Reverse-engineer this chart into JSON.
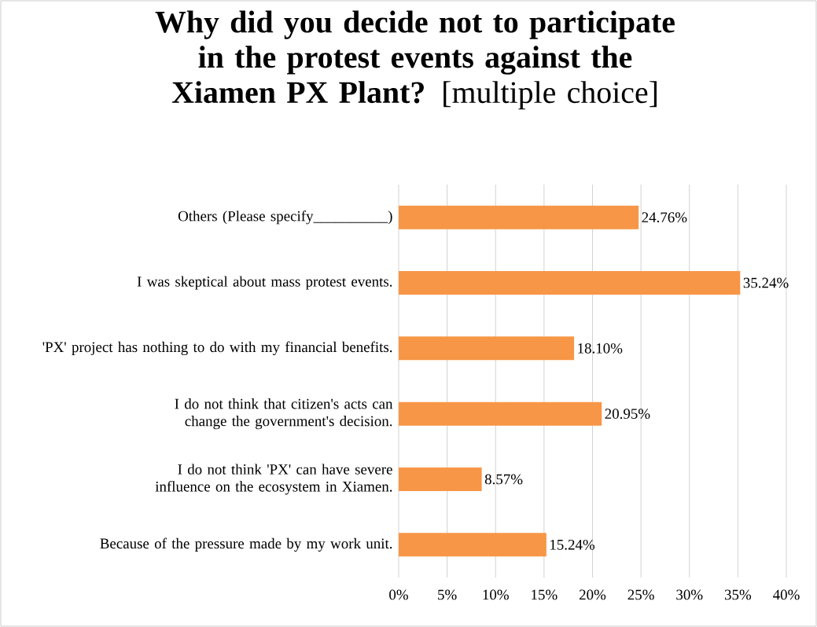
{
  "chart_data": {
    "type": "bar",
    "orientation": "horizontal",
    "title": "**Why did you decide not to participate in the protest events against the Xiamen PX Plant?** [multiple choice]",
    "categories": [
      "Others (Please specify__________)",
      "I was skeptical about mass protest events.",
      "'PX' project has nothing to do with my financial benefits.",
      "I do not think that citizen's acts can change the government's decision.",
      "I do not think 'PX' can have severe influence on the ecosystem in Xiamen.",
      "Because of the pressure made by my work unit."
    ],
    "values": [
      24.76,
      35.24,
      18.1,
      20.95,
      8.57,
      15.24
    ],
    "value_labels": [
      "24.76%",
      "35.24%",
      "18.10%",
      "20.95%",
      "8.57%",
      "15.24%"
    ],
    "color": "#f79646",
    "xlim": [
      0,
      40
    ],
    "xticks": [
      {
        "value": 0,
        "label": "0%"
      },
      {
        "value": 5,
        "label": "5%"
      },
      {
        "value": 10,
        "label": "10%"
      },
      {
        "value": 15,
        "label": "15%"
      },
      {
        "value": 20,
        "label": "20%"
      },
      {
        "value": 25,
        "label": "25%"
      },
      {
        "value": 30,
        "label": "30%"
      },
      {
        "value": 35,
        "label": "35%"
      },
      {
        "value": 40,
        "label": "40%"
      }
    ],
    "grid": "x"
  }
}
